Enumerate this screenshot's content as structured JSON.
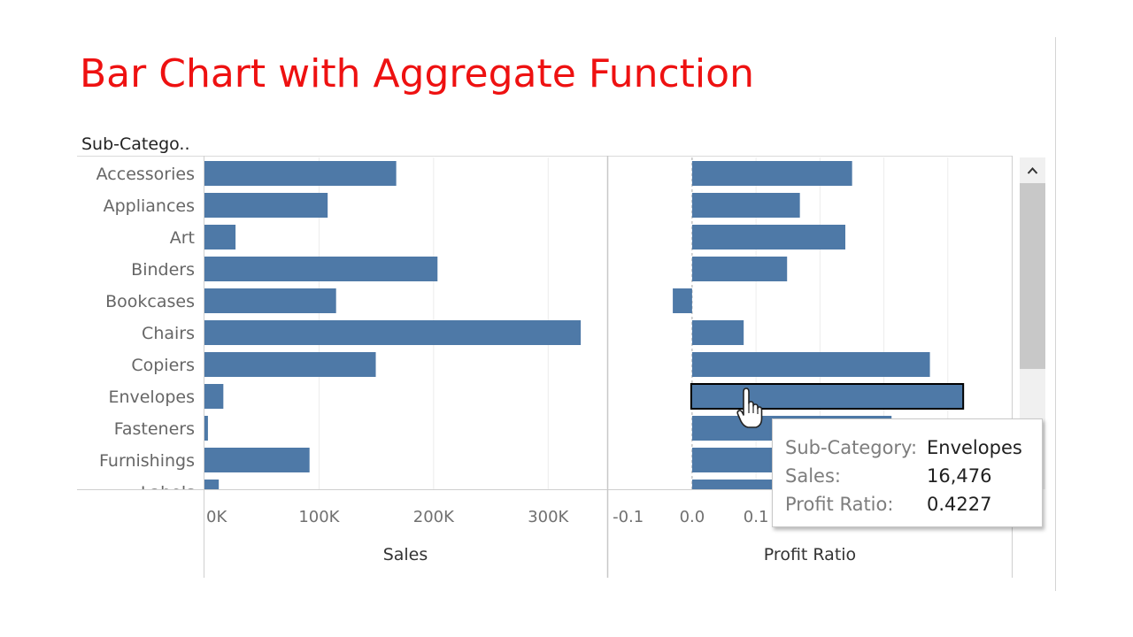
{
  "title": "Bar Chart with Aggregate Function",
  "colors": {
    "title": "#ee1111",
    "bar": "#4e79a7",
    "highlight_border": "#000000",
    "grid": "#ececec",
    "axis": "#cfcfcf"
  },
  "row_header": "Sub-Catego..",
  "chart_data": {
    "type": "bar",
    "orientation": "horizontal",
    "categories": [
      "Accessories",
      "Appliances",
      "Art",
      "Binders",
      "Bookcases",
      "Chairs",
      "Copiers",
      "Envelopes",
      "Fasteners",
      "Furnishings",
      "Labels"
    ],
    "panels": [
      {
        "name": "Sales",
        "xlabel": "Sales",
        "xlim": [
          0,
          350000
        ],
        "ticks": [
          0,
          100000,
          200000,
          300000
        ],
        "tick_labels": [
          "0K",
          "100K",
          "200K",
          "300K"
        ],
        "values": [
          167380,
          107532,
          27119,
          203413,
          114880,
          328449,
          149528,
          16476,
          3024,
          91705,
          12486
        ]
      },
      {
        "name": "Profit Ratio",
        "xlabel": "Profit Ratio",
        "xlim": [
          -0.13,
          0.5
        ],
        "ticks": [
          -0.1,
          0.0,
          0.1
        ],
        "tick_labels": [
          "-0.1",
          "0.0",
          "0.1"
        ],
        "values": [
          0.2503,
          0.1686,
          0.2397,
          0.1486,
          -0.0302,
          0.0807,
          0.372,
          0.4227,
          0.312,
          0.4,
          0.44
        ]
      }
    ],
    "highlighted_category": "Envelopes"
  },
  "tooltip": {
    "rows": [
      {
        "label": "Sub-Category:",
        "value": "Envelopes"
      },
      {
        "label": "Sales:",
        "value": "16,476"
      },
      {
        "label": "Profit Ratio:",
        "value": "0.4227"
      }
    ]
  },
  "scrollbar": {
    "position": 0.0,
    "visible_fraction": 0.5
  }
}
